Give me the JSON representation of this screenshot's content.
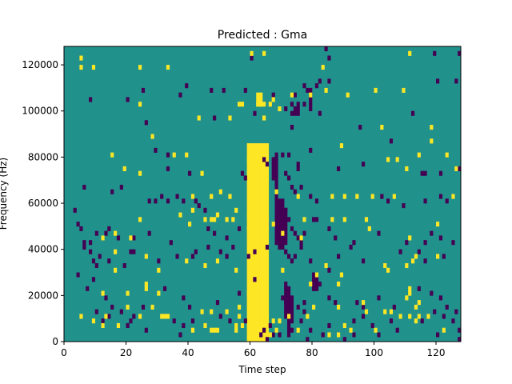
{
  "chart_data": {
    "type": "heatmap",
    "title": "Predicted : Gma",
    "xlabel": "Time step",
    "ylabel": "Frequency (Hz)",
    "xlim": [
      0,
      128
    ],
    "ylim": [
      0,
      128000
    ],
    "x_ticks": [
      0,
      20,
      40,
      60,
      80,
      100,
      120
    ],
    "y_ticks": [
      0,
      20000,
      40000,
      60000,
      80000,
      100000,
      120000
    ],
    "x_tick_labels": [
      "0",
      "20",
      "40",
      "60",
      "80",
      "100",
      "120"
    ],
    "y_tick_labels": [
      "0",
      "20000",
      "40000",
      "60000",
      "80000",
      "100000",
      "120000"
    ],
    "n_time_steps": 128,
    "n_freq_bins": 128,
    "colormap": "viridis",
    "colors": {
      "low": "#440154",
      "mid": "#21918c",
      "high": "#fde725"
    },
    "background_value": "mid",
    "high_cells": [
      [
        5,
        122000
      ],
      [
        5,
        118000
      ],
      [
        9,
        118000
      ],
      [
        24,
        118000
      ],
      [
        33,
        118000
      ],
      [
        60,
        124000
      ],
      [
        64,
        124000
      ],
      [
        83,
        118000
      ],
      [
        111,
        124000
      ],
      [
        73,
        106000
      ],
      [
        79,
        106000
      ],
      [
        84,
        108000
      ],
      [
        91,
        106000
      ],
      [
        100,
        108000
      ],
      [
        109,
        108000
      ],
      [
        24,
        102000
      ],
      [
        67,
        104000
      ],
      [
        69,
        100000
      ],
      [
        56,
        102000
      ],
      [
        57,
        102000
      ],
      [
        62,
        102000
      ],
      [
        63,
        102000
      ],
      [
        64,
        102000
      ],
      [
        66,
        102000
      ],
      [
        53,
        96000
      ],
      [
        64,
        96000
      ],
      [
        102,
        92000
      ],
      [
        43,
        96000
      ],
      [
        28,
        88000
      ],
      [
        118,
        92000
      ],
      [
        118,
        86000
      ],
      [
        89,
        84000
      ],
      [
        15,
        80000
      ],
      [
        39,
        80000
      ],
      [
        35,
        80000
      ],
      [
        59,
        78000
      ],
      [
        62,
        82000
      ],
      [
        19,
        74000
      ],
      [
        24,
        72000
      ],
      [
        44,
        72000
      ],
      [
        59,
        72000
      ],
      [
        61,
        72000
      ],
      [
        104,
        78000
      ],
      [
        107,
        78000
      ],
      [
        123,
        80000
      ],
      [
        114,
        80000
      ],
      [
        126,
        74000
      ],
      [
        110,
        74000
      ],
      [
        41,
        62000
      ],
      [
        47,
        62000
      ],
      [
        50,
        64000
      ],
      [
        53,
        62000
      ],
      [
        61,
        62000
      ],
      [
        68,
        64000
      ],
      [
        75,
        62000
      ],
      [
        86,
        62000
      ],
      [
        90,
        62000
      ],
      [
        94,
        62000
      ],
      [
        99,
        62000
      ],
      [
        106,
        62000
      ],
      [
        125,
        62000
      ],
      [
        41,
        56000
      ],
      [
        37,
        54000
      ],
      [
        49,
        54000
      ],
      [
        55,
        56000
      ],
      [
        59,
        54000
      ],
      [
        24,
        52000
      ],
      [
        45,
        52000
      ],
      [
        47,
        52000
      ],
      [
        48,
        52000
      ],
      [
        52,
        52000
      ],
      [
        54,
        52000
      ],
      [
        60,
        52000
      ],
      [
        77,
        52000
      ],
      [
        86,
        52000
      ],
      [
        90,
        52000
      ],
      [
        97,
        52000
      ],
      [
        120,
        50000
      ],
      [
        40,
        50000
      ],
      [
        67,
        50000
      ],
      [
        16,
        46000
      ],
      [
        70,
        46000
      ],
      [
        59,
        48000
      ],
      [
        98,
        48000
      ],
      [
        12,
        44000
      ],
      [
        21,
        44000
      ],
      [
        76,
        44000
      ],
      [
        111,
        44000
      ],
      [
        26,
        36000
      ],
      [
        39,
        34000
      ],
      [
        49,
        34000
      ],
      [
        16,
        38000
      ],
      [
        103,
        32000
      ],
      [
        104,
        30000
      ],
      [
        84,
        32000
      ],
      [
        110,
        32000
      ],
      [
        112,
        34000
      ],
      [
        113,
        36000
      ],
      [
        120,
        36000
      ],
      [
        16,
        30000
      ],
      [
        30,
        30000
      ],
      [
        45,
        32000
      ],
      [
        55,
        30000
      ],
      [
        70,
        30000
      ],
      [
        79,
        24000
      ],
      [
        81,
        28000
      ],
      [
        88,
        24000
      ],
      [
        89,
        28000
      ],
      [
        26,
        24000
      ],
      [
        26,
        22000
      ],
      [
        111,
        22000
      ],
      [
        111,
        20000
      ],
      [
        12,
        20000
      ],
      [
        20,
        20000
      ],
      [
        30,
        20000
      ],
      [
        59,
        20000
      ],
      [
        114,
        16000
      ],
      [
        20,
        14000
      ],
      [
        28,
        14000
      ],
      [
        31,
        10000
      ],
      [
        32,
        10000
      ],
      [
        33,
        10000
      ],
      [
        56,
        14000
      ],
      [
        80,
        14000
      ],
      [
        88,
        14000
      ],
      [
        96,
        16000
      ],
      [
        97,
        12000
      ],
      [
        103,
        12000
      ],
      [
        105,
        12000
      ],
      [
        110,
        18000
      ],
      [
        5,
        10000
      ],
      [
        13,
        10000
      ],
      [
        24,
        10000
      ],
      [
        44,
        12000
      ],
      [
        47,
        12000
      ],
      [
        52,
        12000
      ],
      [
        56,
        10000
      ],
      [
        67,
        8000
      ],
      [
        69,
        8000
      ],
      [
        72,
        10000
      ],
      [
        78,
        10000
      ],
      [
        108,
        10000
      ],
      [
        111,
        10000
      ],
      [
        114,
        10000
      ],
      [
        117,
        10000
      ],
      [
        113,
        14000
      ],
      [
        9,
        8000
      ],
      [
        17,
        6000
      ],
      [
        12,
        6000
      ],
      [
        45,
        6000
      ],
      [
        55,
        6000
      ],
      [
        57,
        6000
      ],
      [
        59,
        6000
      ],
      [
        90,
        6000
      ],
      [
        113,
        8000
      ],
      [
        41,
        4000
      ],
      [
        47,
        4000
      ],
      [
        48,
        4000
      ],
      [
        49,
        4000
      ],
      [
        55,
        4000
      ],
      [
        68,
        4000
      ],
      [
        75,
        4000
      ],
      [
        92,
        4000
      ],
      [
        100,
        4000
      ],
      [
        122,
        4000
      ],
      [
        66,
        2000
      ],
      [
        85,
        2000
      ],
      [
        88,
        2000
      ]
    ],
    "low_cells": [
      [
        60,
        122000
      ],
      [
        85,
        122000
      ],
      [
        119,
        124000
      ],
      [
        127,
        124000
      ],
      [
        84,
        126000
      ],
      [
        51,
        108000
      ],
      [
        58,
        108000
      ],
      [
        67,
        106000
      ],
      [
        74,
        106000
      ],
      [
        75,
        102000
      ],
      [
        71,
        100000
      ],
      [
        73,
        102000
      ],
      [
        73,
        98000
      ],
      [
        77,
        110000
      ],
      [
        77,
        102000
      ],
      [
        81,
        110000
      ],
      [
        82,
        112000
      ],
      [
        85,
        112000
      ],
      [
        78,
        108000
      ],
      [
        120,
        112000
      ],
      [
        126,
        112000
      ],
      [
        8,
        104000
      ],
      [
        20,
        104000
      ],
      [
        25,
        108000
      ],
      [
        39,
        110000
      ],
      [
        37,
        106000
      ],
      [
        47,
        108000
      ],
      [
        61,
        98000
      ],
      [
        48,
        96000
      ],
      [
        82,
        98000
      ],
      [
        95,
        92000
      ],
      [
        112,
        98000
      ],
      [
        26,
        94000
      ],
      [
        73,
        92000
      ],
      [
        29,
        82000
      ],
      [
        33,
        80000
      ],
      [
        79,
        82000
      ],
      [
        68,
        80000
      ],
      [
        70,
        80000
      ],
      [
        72,
        80000
      ],
      [
        64,
        78000
      ],
      [
        65,
        76000
      ],
      [
        75,
        76000
      ],
      [
        75,
        74000
      ],
      [
        88,
        74000
      ],
      [
        96,
        76000
      ],
      [
        105,
        86000
      ],
      [
        115,
        72000
      ],
      [
        116,
        72000
      ],
      [
        121,
        72000
      ],
      [
        127,
        74000
      ],
      [
        33,
        74000
      ],
      [
        40,
        72000
      ],
      [
        57,
        72000
      ],
      [
        58,
        70000
      ],
      [
        71,
        72000
      ],
      [
        72,
        70000
      ],
      [
        73,
        66000
      ],
      [
        74,
        64000
      ],
      [
        76,
        66000
      ],
      [
        6,
        66000
      ],
      [
        15,
        64000
      ],
      [
        18,
        66000
      ],
      [
        27,
        60000
      ],
      [
        29,
        60000
      ],
      [
        31,
        62000
      ],
      [
        33,
        60000
      ],
      [
        36,
        62000
      ],
      [
        38,
        60000
      ],
      [
        42,
        60000
      ],
      [
        43,
        58000
      ],
      [
        45,
        56000
      ],
      [
        79,
        62000
      ],
      [
        81,
        60000
      ],
      [
        102,
        62000
      ],
      [
        104,
        60000
      ],
      [
        109,
        58000
      ],
      [
        116,
        60000
      ],
      [
        121,
        62000
      ],
      [
        123,
        60000
      ],
      [
        3,
        56000
      ],
      [
        4,
        50000
      ],
      [
        5,
        48000
      ],
      [
        6,
        42000
      ],
      [
        8,
        42000
      ],
      [
        10,
        46000
      ],
      [
        13,
        46000
      ],
      [
        14,
        48000
      ],
      [
        17,
        44000
      ],
      [
        21,
        38000
      ],
      [
        22,
        44000
      ],
      [
        27,
        46000
      ],
      [
        34,
        42000
      ],
      [
        46,
        48000
      ],
      [
        48,
        46000
      ],
      [
        52,
        44000
      ],
      [
        56,
        48000
      ],
      [
        71,
        56000
      ],
      [
        72,
        52000
      ],
      [
        73,
        48000
      ],
      [
        74,
        46000
      ],
      [
        75,
        44000
      ],
      [
        76,
        42000
      ],
      [
        77,
        46000
      ],
      [
        80,
        52000
      ],
      [
        81,
        52000
      ],
      [
        85,
        48000
      ],
      [
        87,
        44000
      ],
      [
        92,
        40000
      ],
      [
        93,
        42000
      ],
      [
        101,
        46000
      ],
      [
        110,
        42000
      ],
      [
        116,
        42000
      ],
      [
        118,
        46000
      ],
      [
        121,
        44000
      ],
      [
        125,
        42000
      ],
      [
        6,
        40000
      ],
      [
        8,
        38000
      ],
      [
        9,
        34000
      ],
      [
        10,
        32000
      ],
      [
        11,
        36000
      ],
      [
        14,
        34000
      ],
      [
        19,
        32000
      ],
      [
        22,
        38000
      ],
      [
        30,
        34000
      ],
      [
        36,
        36000
      ],
      [
        41,
        36000
      ],
      [
        42,
        38000
      ],
      [
        46,
        40000
      ],
      [
        50,
        38000
      ],
      [
        52,
        36000
      ],
      [
        54,
        40000
      ],
      [
        59,
        36000
      ],
      [
        61,
        38000
      ],
      [
        65,
        40000
      ],
      [
        70,
        40000
      ],
      [
        71,
        38000
      ],
      [
        72,
        36000
      ],
      [
        73,
        34000
      ],
      [
        74,
        36000
      ],
      [
        76,
        40000
      ],
      [
        79,
        34000
      ],
      [
        80,
        28000
      ],
      [
        81,
        26000
      ],
      [
        82,
        24000
      ],
      [
        85,
        30000
      ],
      [
        88,
        36000
      ],
      [
        96,
        34000
      ],
      [
        108,
        38000
      ],
      [
        114,
        38000
      ],
      [
        116,
        34000
      ],
      [
        122,
        36000
      ],
      [
        9,
        26000
      ],
      [
        7,
        22000
      ],
      [
        4,
        28000
      ],
      [
        13,
        18000
      ],
      [
        15,
        14000
      ],
      [
        25,
        14000
      ],
      [
        32,
        22000
      ],
      [
        38,
        18000
      ],
      [
        40,
        14000
      ],
      [
        49,
        16000
      ],
      [
        56,
        20000
      ],
      [
        61,
        26000
      ],
      [
        70,
        18000
      ],
      [
        71,
        16000
      ],
      [
        75,
        14000
      ],
      [
        77,
        16000
      ],
      [
        85,
        18000
      ],
      [
        87,
        16000
      ],
      [
        94,
        16000
      ],
      [
        96,
        14000
      ],
      [
        101,
        18000
      ],
      [
        106,
        14000
      ],
      [
        114,
        22000
      ],
      [
        118,
        20000
      ],
      [
        121,
        18000
      ],
      [
        123,
        14000
      ],
      [
        10,
        12000
      ],
      [
        12,
        8000
      ],
      [
        14,
        10000
      ],
      [
        18,
        12000
      ],
      [
        21,
        8000
      ],
      [
        22,
        10000
      ],
      [
        35,
        8000
      ],
      [
        38,
        6000
      ],
      [
        41,
        8000
      ],
      [
        50,
        10000
      ],
      [
        53,
        8000
      ],
      [
        58,
        8000
      ],
      [
        64,
        4000
      ],
      [
        66,
        6000
      ],
      [
        67,
        2000
      ],
      [
        71,
        10000
      ],
      [
        72,
        6000
      ],
      [
        73,
        4000
      ],
      [
        76,
        8000
      ],
      [
        77,
        12000
      ],
      [
        79,
        4000
      ],
      [
        85,
        6000
      ],
      [
        93,
        8000
      ],
      [
        96,
        10000
      ],
      [
        99,
        6000
      ],
      [
        105,
        8000
      ],
      [
        115,
        8000
      ],
      [
        119,
        12000
      ],
      [
        122,
        10000
      ],
      [
        125,
        8000
      ],
      [
        126,
        12000
      ],
      [
        20,
        6000
      ],
      [
        26,
        4000
      ],
      [
        37,
        2000
      ],
      [
        63,
        2000
      ],
      [
        65,
        0
      ],
      [
        69,
        2000
      ],
      [
        78,
        0
      ],
      [
        83,
        2000
      ],
      [
        90,
        0
      ],
      [
        93,
        2000
      ],
      [
        101,
        2000
      ],
      [
        107,
        4000
      ],
      [
        120,
        2000
      ],
      [
        127,
        4000
      ],
      [
        127,
        0
      ]
    ],
    "high_bands": [
      {
        "x": [
          59,
          60,
          61,
          62,
          63,
          64,
          65
        ],
        "y_from": 0,
        "y_to": 84000
      },
      {
        "x": [
          62,
          63
        ],
        "y_from": 102000,
        "y_to": 106000
      },
      {
        "x": [
          60,
          61,
          62,
          63
        ],
        "y_from": 0,
        "y_to": 4000
      }
    ],
    "low_bands": [
      {
        "x": [
          68
        ],
        "y_from": 42000,
        "y_to": 78000
      },
      {
        "x": [
          69,
          70
        ],
        "y_from": 40000,
        "y_to": 60000
      },
      {
        "x": [
          70,
          71
        ],
        "y_from": 42000,
        "y_to": 56000
      },
      {
        "x": [
          72
        ],
        "y_from": 2000,
        "y_to": 22000
      },
      {
        "x": [
          73
        ],
        "y_from": 8000,
        "y_to": 18000
      },
      {
        "x": [
          71
        ],
        "y_from": 12000,
        "y_to": 24000
      },
      {
        "x": [
          67
        ],
        "y_from": 70000,
        "y_to": 78000
      },
      {
        "x": [
          74,
          75
        ],
        "y_from": 98000,
        "y_to": 100000
      },
      {
        "x": [
          80,
          81
        ],
        "y_from": 22000,
        "y_to": 26000
      },
      {
        "x": [
          79
        ],
        "y_from": 100000,
        "y_to": 108000
      }
    ]
  }
}
